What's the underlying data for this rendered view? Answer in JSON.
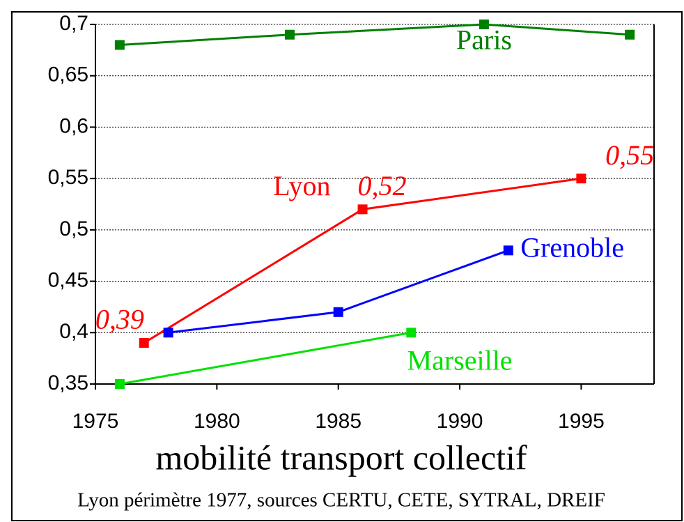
{
  "chart_data": {
    "type": "line",
    "title": "mobilité transport collectif",
    "subtitle": "Lyon périmètre 1977, sources CERTU, CETE, SYTRAL, DREIF",
    "xlim": [
      1975,
      1998
    ],
    "xticks": [
      1975,
      1980,
      1985,
      1990,
      1995
    ],
    "ylim": [
      0.35,
      0.7
    ],
    "yticks": [
      {
        "value": 0.35,
        "label": "0,35"
      },
      {
        "value": 0.4,
        "label": "0,4"
      },
      {
        "value": 0.45,
        "label": "0,45"
      },
      {
        "value": 0.5,
        "label": "0,5"
      },
      {
        "value": 0.55,
        "label": "0,55"
      },
      {
        "value": 0.6,
        "label": "0,6"
      },
      {
        "value": 0.65,
        "label": "0,65"
      },
      {
        "value": 0.7,
        "label": "0,7"
      }
    ],
    "grid": true,
    "series": [
      {
        "name": "Paris",
        "color": "#008000",
        "x": [
          1976,
          1983,
          1991,
          1997
        ],
        "values": [
          0.68,
          0.69,
          0.7,
          0.69
        ]
      },
      {
        "name": "Lyon",
        "color": "#ff0000",
        "x": [
          1977,
          1986,
          1995
        ],
        "values": [
          0.39,
          0.52,
          0.55
        ],
        "value_labels": [
          "0,39",
          "0,52",
          "0,55"
        ]
      },
      {
        "name": "Grenoble",
        "color": "#0000ff",
        "x": [
          1978,
          1985,
          1992
        ],
        "values": [
          0.4,
          0.42,
          0.48
        ]
      },
      {
        "name": "Marseille",
        "color": "#00e000",
        "x": [
          1976,
          1988
        ],
        "values": [
          0.35,
          0.4
        ]
      }
    ]
  }
}
